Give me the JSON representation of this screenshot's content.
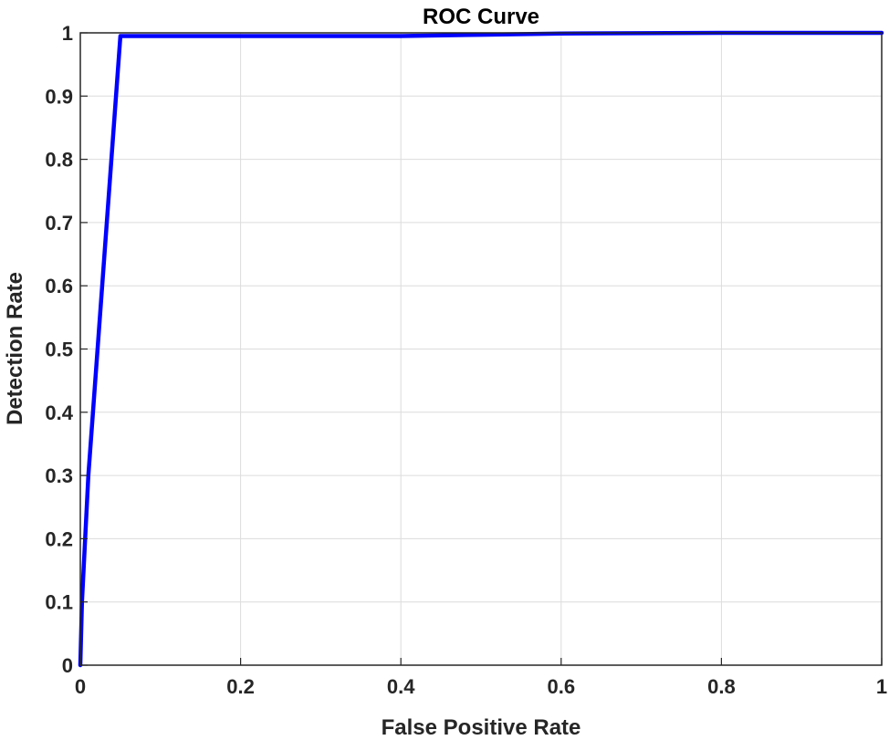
{
  "chart_data": {
    "type": "line",
    "title": "ROC Curve",
    "xlabel": "False Positive Rate",
    "ylabel": "Detection Rate",
    "xlim": [
      0,
      1
    ],
    "ylim": [
      0,
      1
    ],
    "grid": true,
    "x_ticks": [
      "0",
      "0.2",
      "0.4",
      "0.6",
      "0.8",
      "1"
    ],
    "y_ticks": [
      "0",
      "0.1",
      "0.2",
      "0.3",
      "0.4",
      "0.5",
      "0.6",
      "0.7",
      "0.8",
      "0.9",
      "1"
    ],
    "series": [
      {
        "color": "#0000ff",
        "x": [
          0,
          0.002,
          0.01,
          0.05,
          0.2,
          0.4,
          0.5,
          0.6,
          0.8,
          1
        ],
        "y": [
          0,
          0.1,
          0.3,
          0.995,
          0.995,
          0.995,
          0.997,
          0.999,
          1,
          1
        ]
      }
    ]
  }
}
